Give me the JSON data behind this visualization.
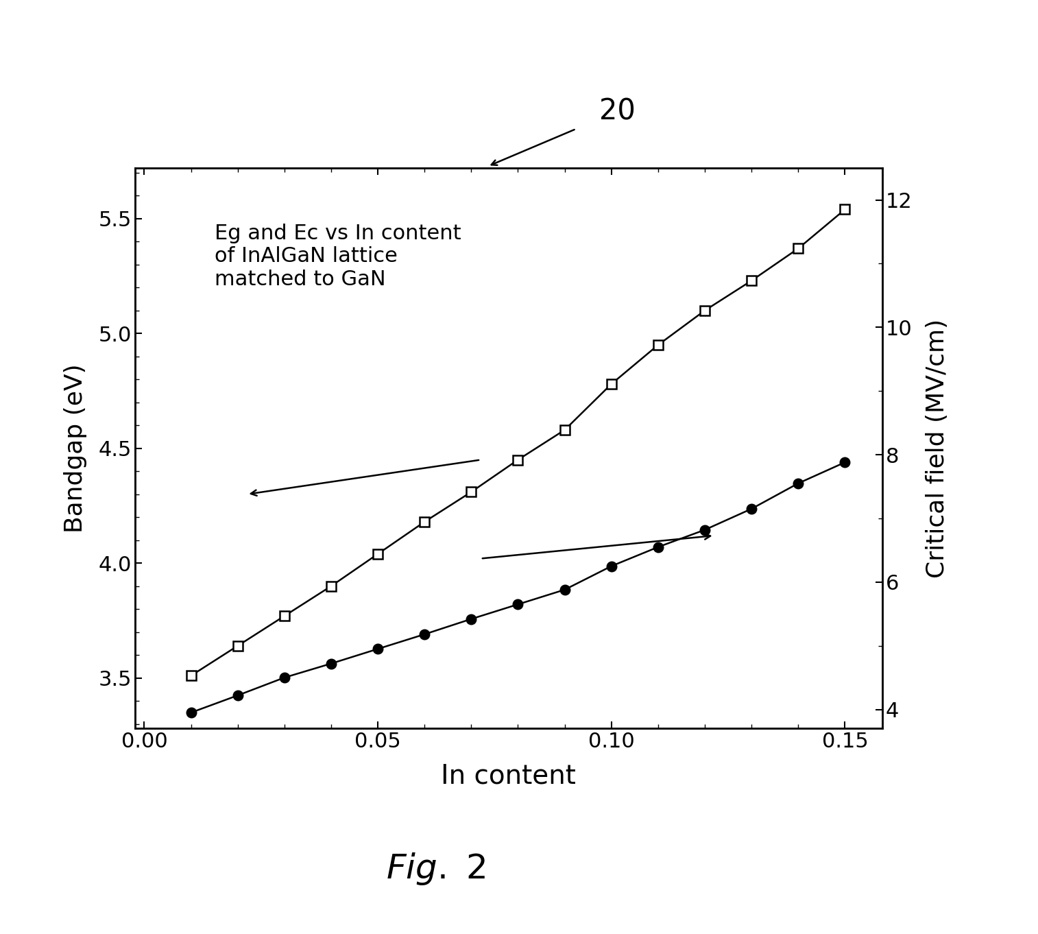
{
  "title_annotation": "20",
  "fig_caption": "FIG. 2",
  "annotation_text": "Eg and Ec vs In content\nof InAlGaN lattice\nmatched to GaN",
  "xlabel": "In content",
  "ylabel_left": "Bandgap (eV)",
  "ylabel_right": "Critical field (MV/cm)",
  "xlim": [
    -0.002,
    0.158
  ],
  "ylim_left": [
    3.28,
    5.72
  ],
  "ylim_right": [
    3.7,
    12.5
  ],
  "xticks": [
    0.0,
    0.05,
    0.1,
    0.15
  ],
  "yticks_left": [
    3.5,
    4.0,
    4.5,
    5.0,
    5.5
  ],
  "yticks_right": [
    4,
    6,
    8,
    10,
    12
  ],
  "x_data": [
    0.01,
    0.02,
    0.03,
    0.04,
    0.05,
    0.06,
    0.07,
    0.08,
    0.09,
    0.1,
    0.11,
    0.12,
    0.13,
    0.14,
    0.15
  ],
  "eg_data": [
    3.51,
    3.64,
    3.77,
    3.9,
    4.04,
    4.18,
    4.31,
    4.45,
    4.58,
    4.78,
    4.95,
    5.1,
    5.23,
    5.37,
    5.54
  ],
  "ec_mvcm": [
    3.95,
    4.22,
    4.5,
    4.72,
    4.95,
    5.18,
    5.42,
    5.65,
    5.88,
    6.25,
    6.55,
    6.82,
    7.15,
    7.55,
    7.88
  ],
  "background_color": "#ffffff",
  "line_color": "#000000"
}
